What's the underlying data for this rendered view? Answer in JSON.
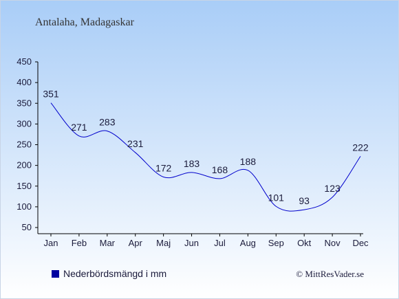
{
  "header": {
    "title": "Antalaha, Madagaskar"
  },
  "legend": {
    "label": "Nederbördsmängd i mm",
    "placement": "bottom-left"
  },
  "footer": {
    "credit": "© MittResVader.se"
  },
  "colors": {
    "line": "#0000cc",
    "legend_swatch": "#0000a0",
    "background_top": "#a9cdf7",
    "background_bottom": "#ffffff",
    "text": "#1a1a3a",
    "title_text": "#333333"
  },
  "chart_data": {
    "type": "line",
    "title": "Antalaha, Madagaskar",
    "xlabel": "",
    "ylabel": "",
    "categories": [
      "Jan",
      "Feb",
      "Mar",
      "Apr",
      "Maj",
      "Jun",
      "Jul",
      "Aug",
      "Sep",
      "Okt",
      "Nov",
      "Dec"
    ],
    "series": [
      {
        "name": "Nederbördsmängd i mm",
        "values": [
          351,
          271,
          283,
          231,
          172,
          183,
          168,
          188,
          101,
          93,
          123,
          222
        ]
      }
    ],
    "ylim": [
      50,
      450
    ],
    "yticks": [
      50,
      100,
      150,
      200,
      250,
      300,
      350,
      400,
      450
    ],
    "grid": false,
    "data_labels": true,
    "legend_placement": "bottom-left"
  }
}
